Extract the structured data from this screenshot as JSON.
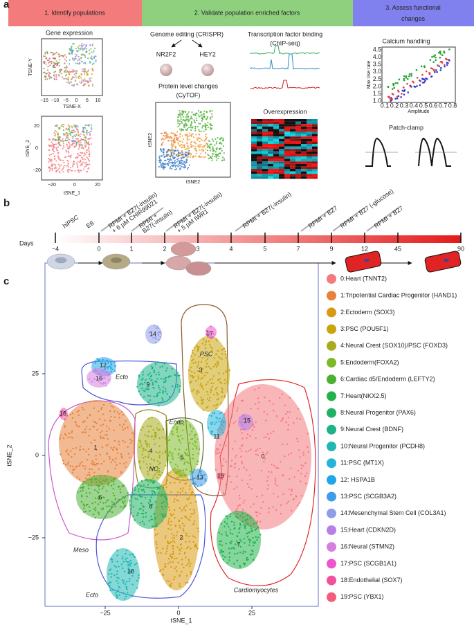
{
  "panel_a": {
    "label": "a",
    "steps": [
      "1. Identify populations",
      "2. Validate population enriched factors",
      "3. Assess functional changes"
    ],
    "gene_expression": {
      "title": "Gene expression",
      "plot1": {
        "x_label": "TSNE-X",
        "y_label": "TSNE-Y",
        "x_ticks": [
          "−15",
          "−10",
          "−5",
          "0",
          "5",
          "10"
        ]
      },
      "plot2": {
        "x_label": "tSNE_1",
        "y_label": "tSNE_2",
        "x_ticks": [
          "−20",
          "0",
          "20"
        ],
        "y_ticks": [
          "20",
          "0",
          "−20"
        ]
      }
    },
    "crispr": {
      "title": "Genome editing (CRISPR)",
      "genes": [
        "NR2F2",
        "HEY2"
      ]
    },
    "cytof": {
      "title_lines": [
        "Protein level changes",
        "(CyTOF)"
      ],
      "x_label": "tSNE2",
      "y_label": "tSNE2"
    },
    "chip": {
      "title_lines": [
        "Transcription factor binding",
        "(ChIP-seq)"
      ]
    },
    "overexpression": {
      "title": "Overexpression"
    },
    "calcium": {
      "title": "Calcium handling",
      "x_label": "Amplitude",
      "y_label": "Max rise rate",
      "x_ticks": [
        "0.1",
        "0.2",
        "0.3",
        "0.4",
        "0.5",
        "0.6",
        "0.7",
        "0.8"
      ],
      "y_ticks": [
        "4.5",
        "4.0",
        "3.5",
        "3.0",
        "2.5",
        "2.0",
        "1.5",
        "1.0"
      ]
    },
    "patch": {
      "title": "Patch-clamp"
    }
  },
  "panel_b": {
    "label": "b",
    "days_label": "Days",
    "days": [
      "−4",
      "0",
      "1",
      "2",
      "3",
      "4",
      "5",
      "7",
      "9",
      "12",
      "45",
      "90"
    ],
    "media": [
      [
        "hiPSC"
      ],
      [
        "E8"
      ],
      [
        "RPMI + B27(-insulin)",
        "+ 6 µM CHIR99021"
      ],
      [
        "RPMI +",
        "B27(-insulin)"
      ],
      [
        "RPMI + B27(-insulin)",
        "+ 5 µM IWR1"
      ],
      [
        "RPMI + B27(-insulin)"
      ],
      [
        "RPMI + B27"
      ],
      [
        "RPMI + B27 (-glucose)"
      ],
      [
        "RPMI + B27"
      ]
    ]
  },
  "panel_c": {
    "label": "c",
    "x_label": "tSNE_1",
    "y_label": "tSNE_2",
    "x_ticks": [
      "−25",
      "0",
      "25"
    ],
    "y_ticks": [
      "25",
      "0",
      "−25"
    ],
    "clusters": [
      {
        "label": "0",
        "name": "0:Heart (TNNT2)",
        "color": "#f47a7e"
      },
      {
        "label": "1",
        "name": "1:Tripotential Cardiac Progenitor (HAND1)",
        "color": "#e8823a"
      },
      {
        "label": "2",
        "name": "2:Ectoderm (SOX3)",
        "color": "#d89a12"
      },
      {
        "label": "3",
        "name": "3:PSC (POU5F1)",
        "color": "#c9a40c"
      },
      {
        "label": "4",
        "name": "4:Neural Crest (SOX10)/PSC (FOXD3)",
        "color": "#a8ac1c"
      },
      {
        "label": "5",
        "name": "5:Endoderm(FOXA2)",
        "color": "#7cb928"
      },
      {
        "label": "6",
        "name": "6:Cardiac d5/Endoderm (LEFTY2)",
        "color": "#4cb035"
      },
      {
        "label": "7",
        "name": "7:Heart(NKX2.5)",
        "color": "#22b24a"
      },
      {
        "label": "8",
        "name": "8:Neural Progenitor (PAX6)",
        "color": "#20b264"
      },
      {
        "label": "9",
        "name": "9:Neural Crest (BDNF)",
        "color": "#1db386"
      },
      {
        "label": "10",
        "name": "10:Neural Progenitor (PCDH8)",
        "color": "#20b8b2"
      },
      {
        "label": "11",
        "name": "11:PSC (MT1X)",
        "color": "#25b4d9"
      },
      {
        "label": "12",
        "name": "12: HSPA1B",
        "color": "#21a6e8"
      },
      {
        "label": "13",
        "name": "13:PSC (SCGB3A2)",
        "color": "#3d9de9"
      },
      {
        "label": "14",
        "name": "14:Mesenchymal Stem Cell (COL3A1)",
        "color": "#8f9de8"
      },
      {
        "label": "15",
        "name": "15:Heart (CDKN2D)",
        "color": "#b77ee8"
      },
      {
        "label": "16",
        "name": "16:Neural (STMN2)",
        "color": "#d67fe0"
      },
      {
        "label": "17",
        "name": "17:PSC (SCGB1A1)",
        "color": "#ee55cc"
      },
      {
        "label": "18",
        "name": "18:Endothelial (SOX7)",
        "color": "#f0509e"
      },
      {
        "label": "19",
        "name": "19:PSC (YBX1)",
        "color": "#f35c7a"
      }
    ],
    "regions": [
      {
        "label": "PSC",
        "color": "#8b5a2b"
      },
      {
        "label": "Ecto",
        "color": "#4d55d8"
      },
      {
        "label": "Endo",
        "color": "#556b2f"
      },
      {
        "label": "NC",
        "color": "#8a8a10"
      },
      {
        "label": "Meso",
        "color": "#cc55cc"
      },
      {
        "label": "Ecto",
        "color": "#4d55d8"
      },
      {
        "label": "Cardiomyocytes",
        "color": "#e02828"
      }
    ]
  }
}
